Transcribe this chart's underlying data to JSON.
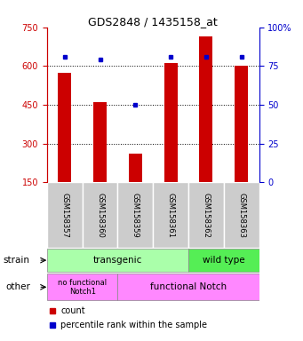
{
  "title": "GDS2848 / 1435158_at",
  "samples": [
    "GSM158357",
    "GSM158360",
    "GSM158359",
    "GSM158361",
    "GSM158362",
    "GSM158363"
  ],
  "bar_values": [
    575,
    460,
    260,
    610,
    715,
    600
  ],
  "percentile_values": [
    81,
    79,
    50,
    81,
    81,
    81
  ],
  "ylim_left": [
    150,
    750
  ],
  "ylim_right": [
    0,
    100
  ],
  "yticks_left": [
    150,
    300,
    450,
    600,
    750
  ],
  "yticks_right": [
    0,
    25,
    50,
    75,
    100
  ],
  "bar_color": "#CC0000",
  "marker_color": "#0000CC",
  "bg_color": "#FFFFFF",
  "transgenic_color": "#AAFFAA",
  "wildtype_color": "#55EE55",
  "other_color": "#FF88FF",
  "label_bg": "#CCCCCC",
  "title_fontsize": 9,
  "tick_fontsize": 7,
  "annotation_fontsize": 7.5,
  "legend_fontsize": 7
}
